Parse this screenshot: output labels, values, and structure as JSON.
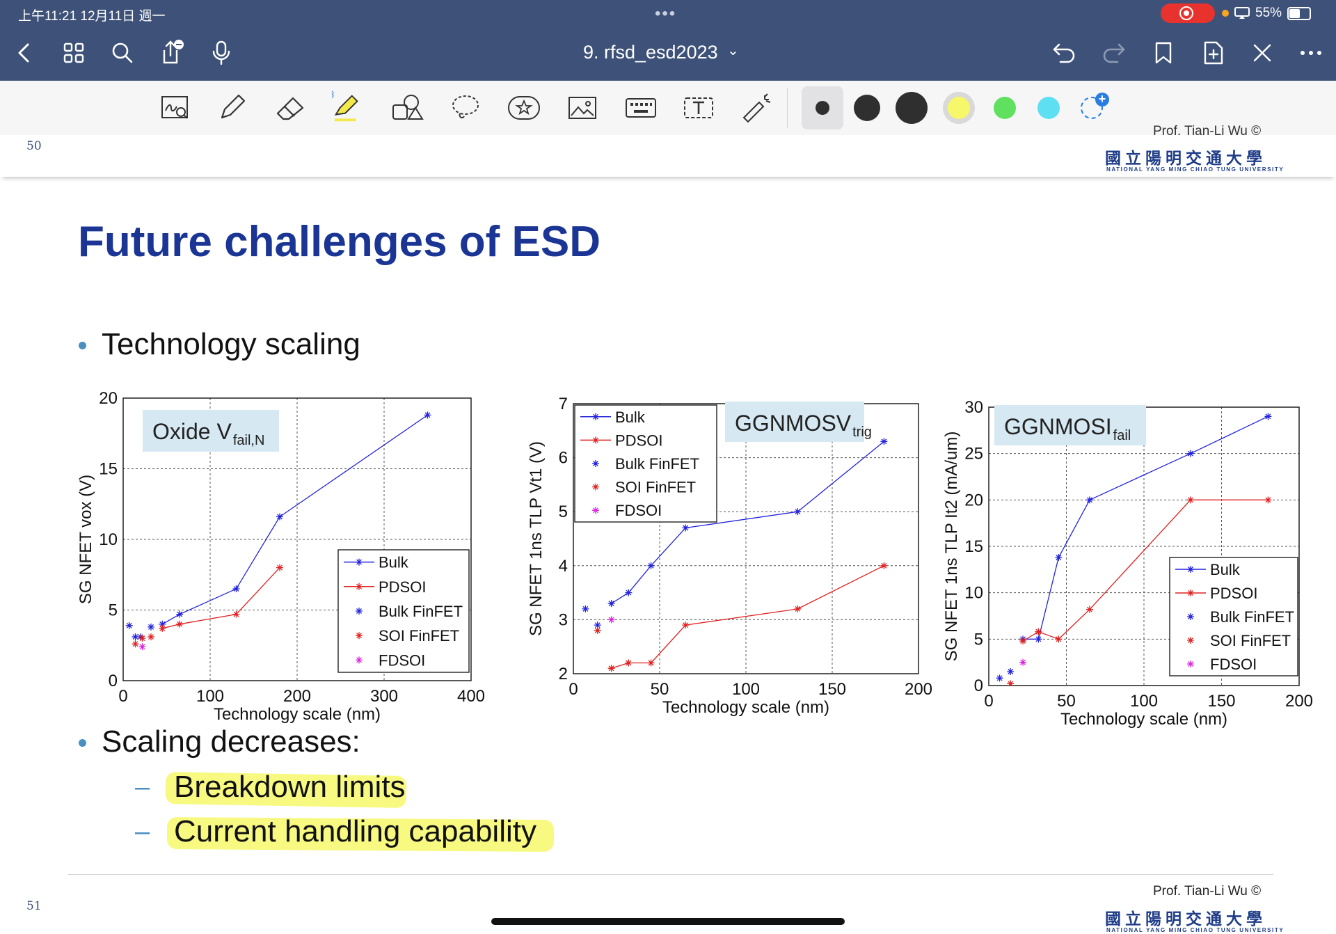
{
  "status": {
    "time": "上午11:21  12月11日 週一",
    "dots": "•••",
    "battery": "55%"
  },
  "nav": {
    "doc_title": "9. rfsd_esd2023",
    "title_chevron": "⌄"
  },
  "toolbar": {
    "pen_colors": [
      "#2f2f2f",
      "#2f2f2f",
      "#2f2f2f",
      "#f6f86a",
      "#5fe05f",
      "#5ee0f2"
    ],
    "add_color": "+"
  },
  "page_top": {
    "page_number": "50",
    "partial_author": "Prof. Tian-Li Wu ©"
  },
  "university": {
    "zh": "國立陽明交通大學",
    "en": "NATIONAL YANG MING CHIAO TUNG UNIVERSITY"
  },
  "slide": {
    "title": "Future challenges of ESD",
    "bullet1": "Technology scaling",
    "bullet2": "Scaling decreases:",
    "sub1": "Breakdown limits",
    "sub2": "Current handling capability",
    "dash": "–",
    "author": "Prof. Tian-Li Wu ©",
    "page_number": "51"
  },
  "chart_data": [
    {
      "type": "line",
      "label_box": "Oxide V",
      "label_sub": "fail,N",
      "xlabel": "Technology scale (nm)",
      "ylabel": "SG NFET vox (V)",
      "xlim": [
        0,
        400
      ],
      "ylim": [
        0,
        20
      ],
      "xticks": [
        "0",
        "100",
        "200",
        "300",
        "400"
      ],
      "yticks": [
        "0",
        "5",
        "10",
        "15",
        "20"
      ],
      "legend": [
        "Bulk",
        "PDSOI",
        "Bulk FinFET",
        "SOI FinFET",
        "FDSOI"
      ],
      "legend_pos": "bottom-right",
      "series": [
        {
          "name": "Bulk",
          "kind": "line",
          "color": "#2222dd",
          "x": [
            45,
            65,
            130,
            180,
            350
          ],
          "y": [
            4.0,
            4.7,
            6.5,
            11.6,
            18.8
          ]
        },
        {
          "name": "PDSOI",
          "kind": "line",
          "color": "#e02020",
          "x": [
            45,
            65,
            130,
            180
          ],
          "y": [
            3.7,
            4.0,
            4.7,
            8.0
          ]
        },
        {
          "name": "Bulk FinFET",
          "kind": "marker",
          "color": "#2222dd",
          "x": [
            7,
            14,
            20,
            32
          ],
          "y": [
            3.9,
            3.1,
            3.1,
            3.8
          ]
        },
        {
          "name": "SOI FinFET",
          "kind": "marker",
          "color": "#e02020",
          "x": [
            14,
            22,
            32
          ],
          "y": [
            2.6,
            3.0,
            3.1
          ]
        },
        {
          "name": "FDSOI",
          "kind": "marker",
          "color": "#dd22dd",
          "x": [
            22
          ],
          "y": [
            2.4
          ]
        }
      ]
    },
    {
      "type": "line",
      "label_box": "GGNMOSV",
      "label_sub": "trig",
      "xlabel": "Technology scale (nm)",
      "ylabel": "SG NFET 1ns TLP Vt1 (V)",
      "xlim": [
        0,
        200
      ],
      "ylim": [
        2,
        7
      ],
      "xticks": [
        "0",
        "50",
        "100",
        "150",
        "200"
      ],
      "yticks": [
        "2",
        "3",
        "4",
        "5",
        "6",
        "7"
      ],
      "legend": [
        "Bulk",
        "PDSOI",
        "Bulk FinFET",
        "SOI FinFET",
        "FDSOI"
      ],
      "legend_pos": "top-left",
      "series": [
        {
          "name": "Bulk",
          "kind": "line",
          "color": "#2222dd",
          "x": [
            22,
            32,
            45,
            65,
            130,
            180
          ],
          "y": [
            3.3,
            3.5,
            4.0,
            4.7,
            5.0,
            6.3
          ]
        },
        {
          "name": "PDSOI",
          "kind": "line",
          "color": "#e02020",
          "x": [
            22,
            32,
            45,
            65,
            130,
            180
          ],
          "y": [
            2.1,
            2.2,
            2.2,
            2.9,
            3.2,
            4.0
          ]
        },
        {
          "name": "Bulk FinFET",
          "kind": "marker",
          "color": "#2222dd",
          "x": [
            7,
            14
          ],
          "y": [
            3.2,
            2.9
          ]
        },
        {
          "name": "SOI FinFET",
          "kind": "marker",
          "color": "#e02020",
          "x": [
            14
          ],
          "y": [
            2.8
          ]
        },
        {
          "name": "FDSOI",
          "kind": "marker",
          "color": "#dd22dd",
          "x": [
            22
          ],
          "y": [
            3.0
          ]
        }
      ]
    },
    {
      "type": "line",
      "label_box": "GGNMOSI",
      "label_sub": "fail",
      "xlabel": "Technology scale (nm)",
      "ylabel": "SG NFET 1ns TLP It2 (mA/um)",
      "xlim": [
        0,
        200
      ],
      "ylim": [
        0,
        30
      ],
      "xticks": [
        "0",
        "50",
        "100",
        "150",
        "200"
      ],
      "yticks": [
        "0",
        "5",
        "10",
        "15",
        "20",
        "25",
        "30"
      ],
      "legend": [
        "Bulk",
        "PDSOI",
        "Bulk FinFET",
        "SOI FinFET",
        "FDSOI"
      ],
      "legend_pos": "bottom-right",
      "series": [
        {
          "name": "Bulk",
          "kind": "line",
          "color": "#2222dd",
          "x": [
            22,
            32,
            45,
            65,
            130,
            180
          ],
          "y": [
            5.0,
            5.0,
            13.8,
            20.0,
            25.0,
            29.0
          ]
        },
        {
          "name": "PDSOI",
          "kind": "line",
          "color": "#e02020",
          "x": [
            22,
            32,
            45,
            65,
            130,
            180
          ],
          "y": [
            4.8,
            5.8,
            5.0,
            8.2,
            20.0,
            20.0
          ]
        },
        {
          "name": "Bulk FinFET",
          "kind": "marker",
          "color": "#2222dd",
          "x": [
            7,
            14
          ],
          "y": [
            0.8,
            1.5
          ]
        },
        {
          "name": "SOI FinFET",
          "kind": "marker",
          "color": "#e02020",
          "x": [
            14
          ],
          "y": [
            0.2
          ]
        },
        {
          "name": "FDSOI",
          "kind": "marker",
          "color": "#dd22dd",
          "x": [
            22
          ],
          "y": [
            2.5
          ]
        }
      ]
    }
  ]
}
